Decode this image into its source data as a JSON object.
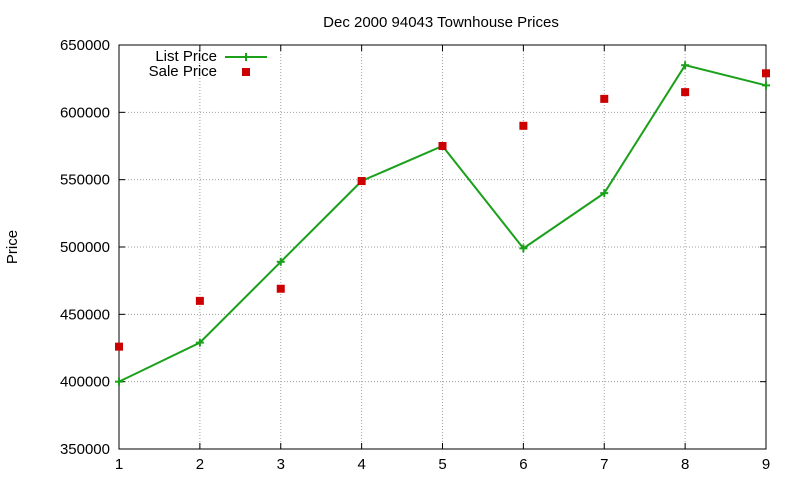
{
  "chart_data": {
    "type": "line",
    "title": "Dec 2000 94043 Townhouse Prices",
    "xlabel": "",
    "ylabel": "Price",
    "xlim": [
      1,
      9
    ],
    "ylim": [
      350000,
      650000
    ],
    "x_ticks": [
      1,
      2,
      3,
      4,
      5,
      6,
      7,
      8,
      9
    ],
    "y_ticks": [
      350000,
      400000,
      450000,
      500000,
      550000,
      600000,
      650000
    ],
    "grid": true,
    "legend_position": "top-left",
    "series": [
      {
        "name": "List Price",
        "style": "line-with-plus-markers",
        "color": "#1aa01a",
        "x": [
          1,
          2,
          3,
          4,
          5,
          6,
          7,
          8,
          9
        ],
        "values": [
          400000,
          429000,
          489000,
          549000,
          575000,
          499000,
          540000,
          635000,
          620000
        ]
      },
      {
        "name": "Sale Price",
        "style": "square-markers",
        "color": "#cc0000",
        "x": [
          1,
          2,
          3,
          4,
          5,
          6,
          7,
          8,
          9
        ],
        "values": [
          426000,
          460000,
          469000,
          549000,
          575000,
          590000,
          610000,
          615000,
          629000
        ]
      }
    ]
  }
}
